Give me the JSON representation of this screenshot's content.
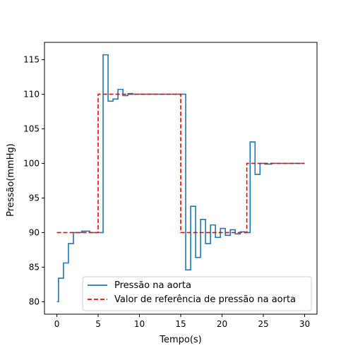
{
  "chart_data": {
    "type": "line",
    "xlabel": "Tempo(s)",
    "ylabel": "Pressão(mmHg)",
    "xlim": [
      -1.5,
      31.5
    ],
    "ylim": [
      78.2,
      117.5
    ],
    "xticks": [
      0,
      5,
      10,
      15,
      20,
      25,
      30
    ],
    "yticks": [
      80,
      85,
      90,
      95,
      100,
      105,
      110,
      115
    ],
    "grid": false,
    "legend_position": "lower right",
    "series": [
      {
        "name": "Pressão na aorta",
        "color": "#1f77b4",
        "style": "solid",
        "step": "post",
        "x": [
          0,
          0.2,
          0.8,
          1.4,
          2.0,
          3.0,
          4.0,
          5.6,
          6.2,
          6.8,
          7.4,
          8.0,
          8.6,
          9.2,
          10.0,
          15.6,
          16.2,
          16.8,
          17.4,
          18.0,
          18.6,
          19.2,
          19.8,
          20.4,
          21.0,
          21.6,
          22.2,
          22.8,
          23.4,
          24.0,
          24.6,
          25.2,
          26.0,
          27.0,
          30.0
        ],
        "y": [
          80.0,
          83.4,
          85.6,
          88.4,
          90.0,
          90.2,
          90.0,
          115.7,
          109.0,
          109.3,
          110.7,
          109.8,
          110.1,
          110.0,
          110.0,
          84.6,
          93.8,
          86.4,
          91.9,
          88.4,
          91.1,
          89.3,
          90.6,
          89.6,
          90.4,
          89.8,
          90.1,
          90.0,
          103.1,
          98.4,
          100.0,
          99.9,
          100.0,
          100.0,
          100.0
        ]
      },
      {
        "name": "Valor de referência de pressão na aorta",
        "color": "#ff0000",
        "style": "dashed",
        "step": "post",
        "x": [
          0,
          5,
          15,
          23,
          30
        ],
        "y": [
          90,
          110,
          90,
          100,
          100
        ]
      }
    ]
  }
}
